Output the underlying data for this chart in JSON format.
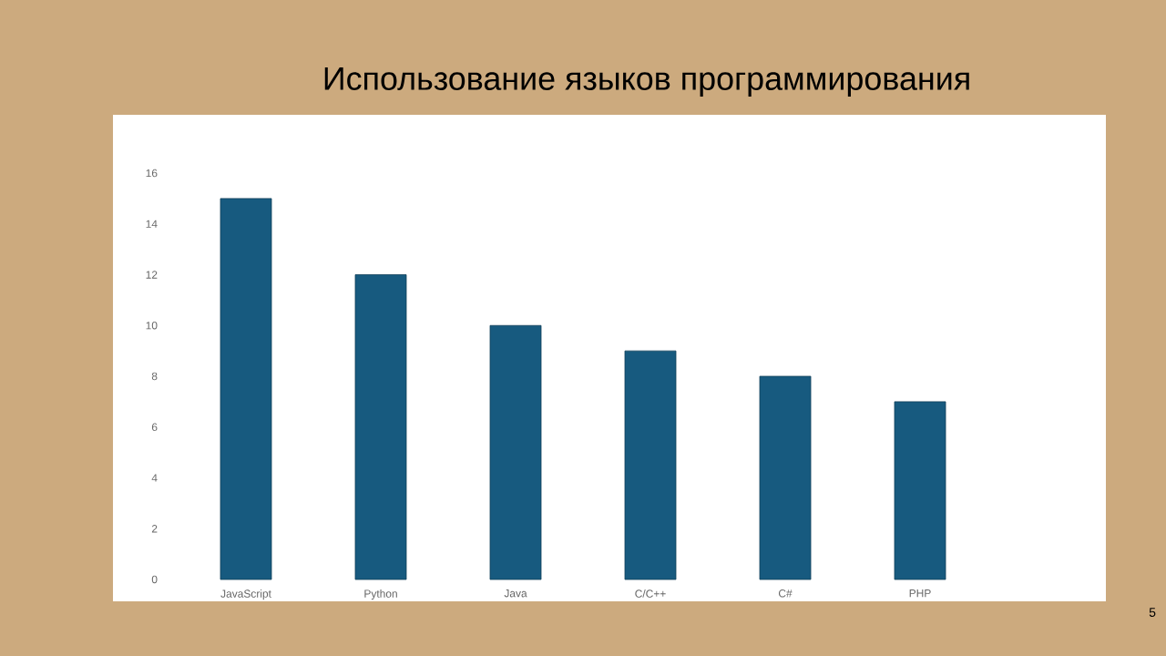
{
  "chart_data": {
    "type": "bar",
    "title": "Использование языков программирования",
    "categories": [
      "JavaScript",
      "Python",
      "Java",
      "C/C++",
      "C#",
      "PHP"
    ],
    "values": [
      15,
      12,
      10,
      9,
      8,
      7
    ],
    "color": "#175a7f",
    "ylim": [
      0,
      16
    ],
    "yticks": [
      0,
      2,
      4,
      6,
      8,
      10,
      12,
      14,
      16
    ],
    "annotations": [
      "5"
    ]
  }
}
